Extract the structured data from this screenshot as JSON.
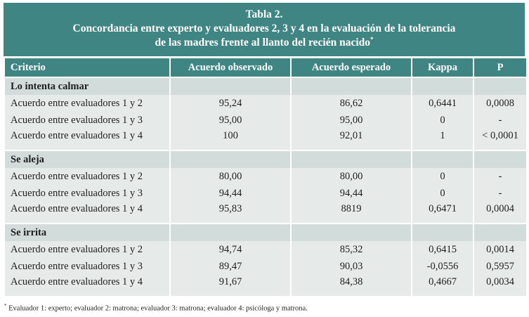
{
  "caption": {
    "title": "Tabla 2.",
    "line1": "Concordancia entre experto y evaluadores 2, 3 y 4 en la evaluación de la tolerancia",
    "line2": "de las madres frente al llanto del recién nacido",
    "marker": "*"
  },
  "headers": [
    "Criterio",
    "Acuerdo observado",
    "Acuerdo esperado",
    "Kappa",
    "P"
  ],
  "sections": [
    {
      "name": "Lo intenta calmar",
      "rows": [
        [
          "Acuerdo entre evaluadores 1 y 2",
          "95,24",
          "86,62",
          "0,6441",
          "0,0008"
        ],
        [
          "Acuerdo entre evaluadores 1 y 3",
          "95,00",
          "95,00",
          "0",
          "-"
        ],
        [
          "Acuerdo entre evaluadores 1 y 4",
          "100",
          "92,01",
          "1",
          "< 0,0001"
        ]
      ]
    },
    {
      "name": "Se aleja",
      "rows": [
        [
          "Acuerdo entre evaluadores 1 y 2",
          "80,00",
          "80,00",
          "0",
          "-"
        ],
        [
          "Acuerdo entre evaluadores 1 y 3",
          "94,44",
          "94,44",
          "0",
          "-"
        ],
        [
          "Acuerdo entre evaluadores 1 y 4",
          "95,83",
          "8819",
          "0,6471",
          "0,0004"
        ]
      ]
    },
    {
      "name": "Se irrita",
      "rows": [
        [
          "Acuerdo entre evaluadores 1 y 2",
          "94,74",
          "85,32",
          "0,6415",
          "0,0014"
        ],
        [
          "Acuerdo entre evaluadores 1 y 3",
          "89,47",
          "90,03",
          "-0,0556",
          "0,5957"
        ],
        [
          "Acuerdo entre evaluadores 1 y 4",
          "91,67",
          "84,38",
          "0,4667",
          "0,0034"
        ]
      ]
    }
  ],
  "footnote": {
    "marker": "*",
    "text": " Evaluador 1: experto; evaluador 2: matrona; evaluador 3: matrona; evaluador 4: psicóloga y matrona."
  },
  "colors": {
    "header_teal": "#3f8583",
    "section_band": "#d2dddb",
    "data_row": "#e6ebea"
  }
}
